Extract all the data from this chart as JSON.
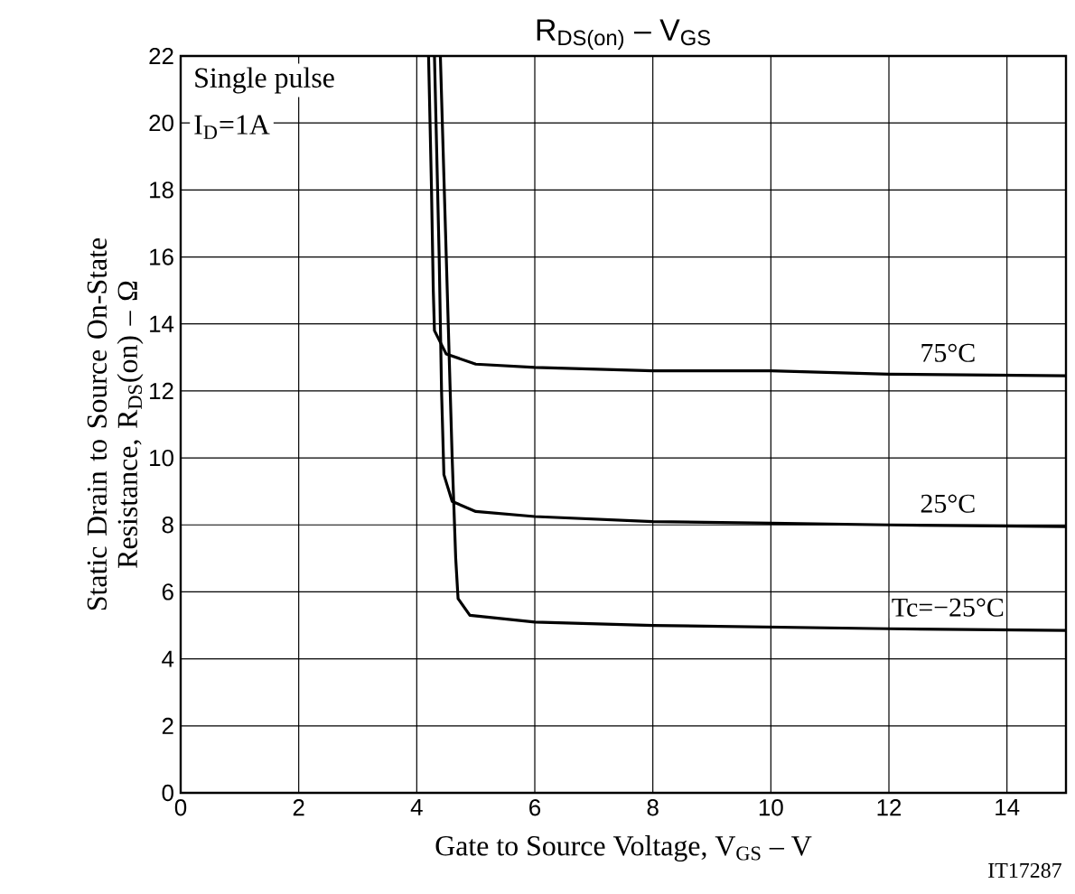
{
  "chart_data": {
    "type": "line",
    "title": "R$_{DS(on)}$ – V$_{GS}$",
    "xlabel": "Gate to Source Voltage, V$_{GS}$ – V",
    "ylabel": "Static Drain to Source On-State Resistance, R$_{DS}$(on) – Ω",
    "annotations": [
      "Single pulse",
      "I$_{D}$=1A",
      "IT17287"
    ],
    "series": [
      {
        "name": "75°C",
        "color": "#000000",
        "x": [
          4.2,
          4.25,
          4.28,
          4.3,
          4.5,
          5,
          6,
          8,
          10,
          12,
          15
        ],
        "values": [
          22,
          18,
          15,
          13.8,
          13.1,
          12.8,
          12.7,
          12.6,
          12.6,
          12.5,
          12.45
        ]
      },
      {
        "name": "25°C",
        "color": "#000000",
        "x": [
          4.3,
          4.38,
          4.42,
          4.46,
          4.6,
          5,
          6,
          8,
          10,
          12,
          15
        ],
        "values": [
          22,
          16,
          12,
          9.5,
          8.7,
          8.4,
          8.25,
          8.1,
          8.05,
          8.0,
          7.95
        ]
      },
      {
        "name": "Tc=−25°C",
        "color": "#000000",
        "x": [
          4.4,
          4.5,
          4.6,
          4.66,
          4.7,
          4.9,
          6,
          8,
          10,
          12,
          15
        ],
        "values": [
          22,
          16,
          10,
          7,
          5.8,
          5.3,
          5.1,
          5.0,
          4.95,
          4.9,
          4.85
        ]
      }
    ],
    "xlim": [
      0,
      15
    ],
    "ylim": [
      0,
      22
    ],
    "xticks": [
      0,
      2,
      4,
      6,
      8,
      10,
      12,
      14
    ],
    "yticks": [
      0,
      2,
      4,
      6,
      8,
      10,
      12,
      14,
      16,
      18,
      20,
      22
    ],
    "grid": true,
    "legend": false,
    "marker": "none",
    "line_style": "solid"
  }
}
